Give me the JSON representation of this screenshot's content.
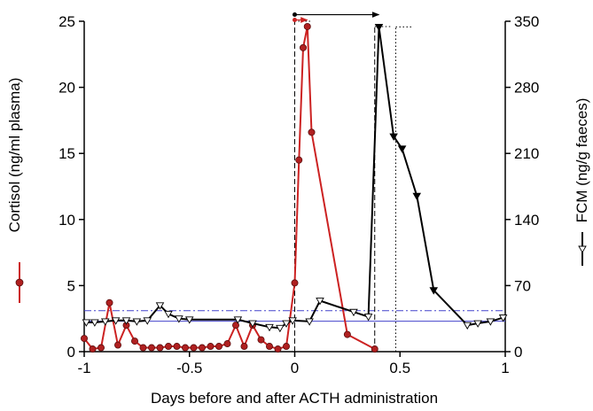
{
  "chart_data": {
    "type": "line",
    "xlabel": "Days before and after ACTH administration",
    "ylabel_left": "Cortisol (ng/ml plasma)",
    "ylabel_right": "FCM (ng/g faeces)",
    "xlim": [
      -1,
      1
    ],
    "ylim_left": [
      0,
      25
    ],
    "ylim_right": [
      0,
      350
    ],
    "x_ticks": [
      -1,
      -0.5,
      0,
      0.5,
      1
    ],
    "x_tick_labels": [
      "-1",
      "-0.5",
      "0",
      "0.5",
      "1"
    ],
    "y_left_ticks": [
      0,
      5,
      10,
      15,
      20,
      25
    ],
    "y_right_ticks": [
      0,
      70,
      140,
      210,
      280,
      350
    ],
    "grid": false,
    "colors": {
      "cortisol": "#cc2222",
      "cortisol_marker": "#b02020",
      "fcm": "#000000",
      "baseline_solid": "#4444cc",
      "baseline_dashdot": "#4444cc"
    },
    "series": [
      {
        "name": "Cortisol (ng/ml plasma)",
        "axis": "left",
        "marker": "circle",
        "x": [
          -1.0,
          -0.96,
          -0.92,
          -0.88,
          -0.84,
          -0.8,
          -0.76,
          -0.72,
          -0.68,
          -0.64,
          -0.6,
          -0.56,
          -0.52,
          -0.48,
          -0.44,
          -0.4,
          -0.36,
          -0.32,
          -0.28,
          -0.24,
          -0.2,
          -0.16,
          -0.12,
          -0.08,
          -0.04,
          0.0,
          0.02,
          0.04,
          0.06,
          0.08,
          0.25,
          0.38
        ],
        "y": [
          1.0,
          0.2,
          0.3,
          3.7,
          0.5,
          2.0,
          0.8,
          0.3,
          0.3,
          0.3,
          0.4,
          0.4,
          0.3,
          0.3,
          0.3,
          0.4,
          0.4,
          0.6,
          2.0,
          0.4,
          2.0,
          0.9,
          0.4,
          0.2,
          0.4,
          5.2,
          14.5,
          23.0,
          24.6,
          16.6,
          1.3,
          0.2
        ]
      },
      {
        "name": "FCM (ng/g faeces)",
        "axis": "right",
        "marker": "triangle-down",
        "x": [
          -0.99,
          -0.95,
          -0.9,
          -0.85,
          -0.8,
          -0.75,
          -0.7,
          -0.64,
          -0.6,
          -0.55,
          -0.5,
          -0.27,
          -0.2,
          -0.12,
          -0.07,
          -0.04,
          -0.01,
          0.07,
          0.12,
          0.28,
          0.35,
          0.4,
          0.47,
          0.51,
          0.58,
          0.66,
          0.82,
          0.87,
          0.93,
          0.99
        ],
        "y": [
          31,
          31,
          32,
          33,
          33,
          32,
          33,
          49,
          40,
          35,
          34,
          34,
          30,
          26,
          25,
          30,
          33,
          32,
          54,
          42,
          37,
          344,
          228,
          215,
          165,
          65,
          28,
          30,
          32,
          36
        ]
      }
    ],
    "reference_lines": [
      {
        "style": "solid",
        "axis": "left",
        "y": 2.3
      },
      {
        "style": "dash-dot",
        "axis": "left",
        "y": 3.1
      }
    ],
    "annotations": [
      {
        "type": "vertical-dashed",
        "x": 0.0,
        "to_axis": "left",
        "to_y": 25.0
      },
      {
        "type": "vertical-dashed",
        "x": 0.38,
        "to_axis": "left",
        "to_y": 24.6
      },
      {
        "type": "vertical-dotted",
        "x": 0.48,
        "to_axis": "right",
        "to_y": 344
      },
      {
        "type": "arrow",
        "color": "red",
        "from_x": 0.0,
        "to_x": 0.06,
        "axis": "left",
        "y": 25.1
      },
      {
        "type": "arrow",
        "color": "black",
        "from_x": 0.0,
        "to_x": 0.4,
        "axis": "left",
        "y": 25.5
      }
    ]
  }
}
